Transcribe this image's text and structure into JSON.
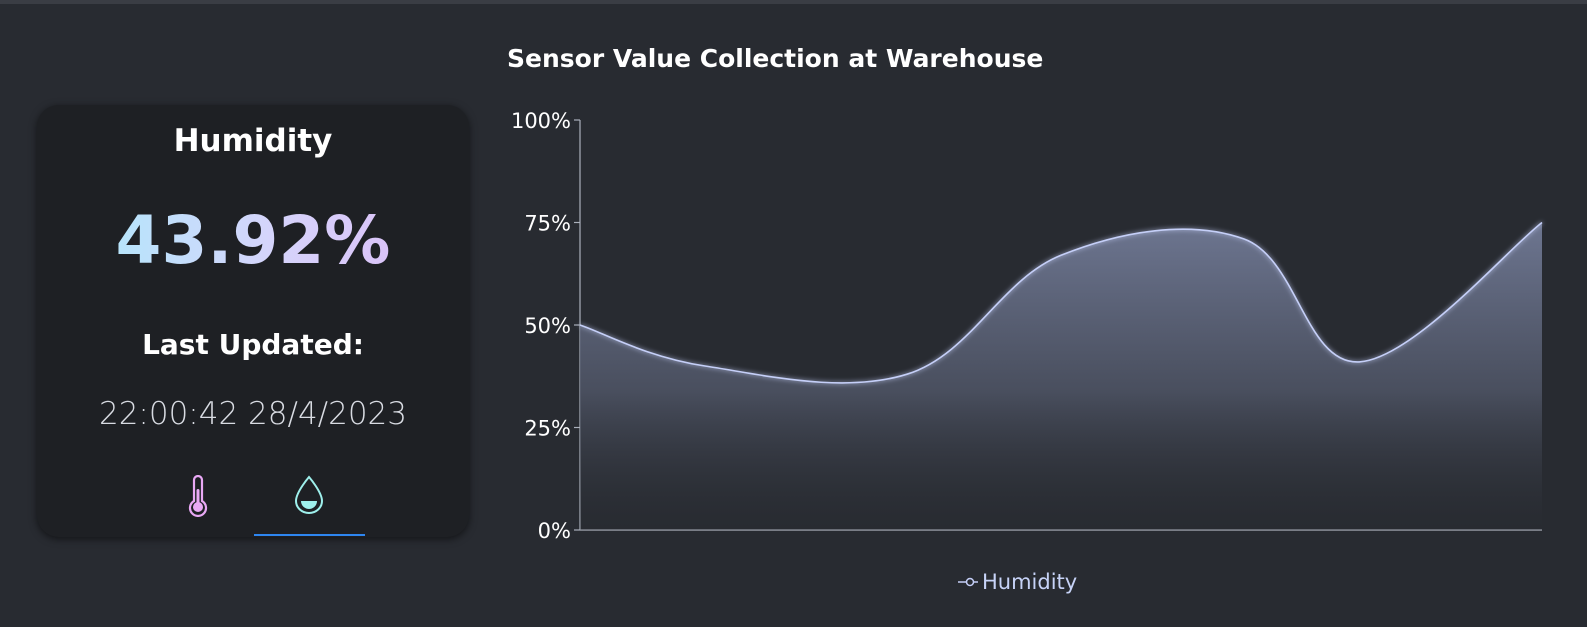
{
  "card": {
    "title": "Humidity",
    "value": "43.92%",
    "updated_label": "Last Updated:",
    "timestamp": "22:00:42 28/4/2023",
    "tabs": [
      {
        "icon": "thermometer-icon",
        "selected": false
      },
      {
        "icon": "water-drop-icon",
        "selected": true
      }
    ]
  },
  "colors": {
    "background": "#282b31",
    "card": "#1e2024",
    "line": "#c5cff8",
    "tab_indicator": "#2e86f0",
    "thermometer": "#e9a8f5",
    "drop": "#9ef0ec"
  },
  "chart_data": {
    "type": "area",
    "title": "Sensor Value Collection at Warehouse",
    "xlabel": "",
    "ylabel": "",
    "ylim": [
      0,
      100
    ],
    "y_ticks": [
      "0%",
      "25%",
      "50%",
      "75%",
      "100%"
    ],
    "x": [
      0,
      1,
      2,
      3,
      4,
      5,
      6,
      7
    ],
    "series": [
      {
        "name": "Humidity",
        "values": [
          50,
          40,
          38,
          67,
          71,
          41,
          75,
          75
        ]
      }
    ],
    "grid": false,
    "legend": "bottom-center"
  }
}
